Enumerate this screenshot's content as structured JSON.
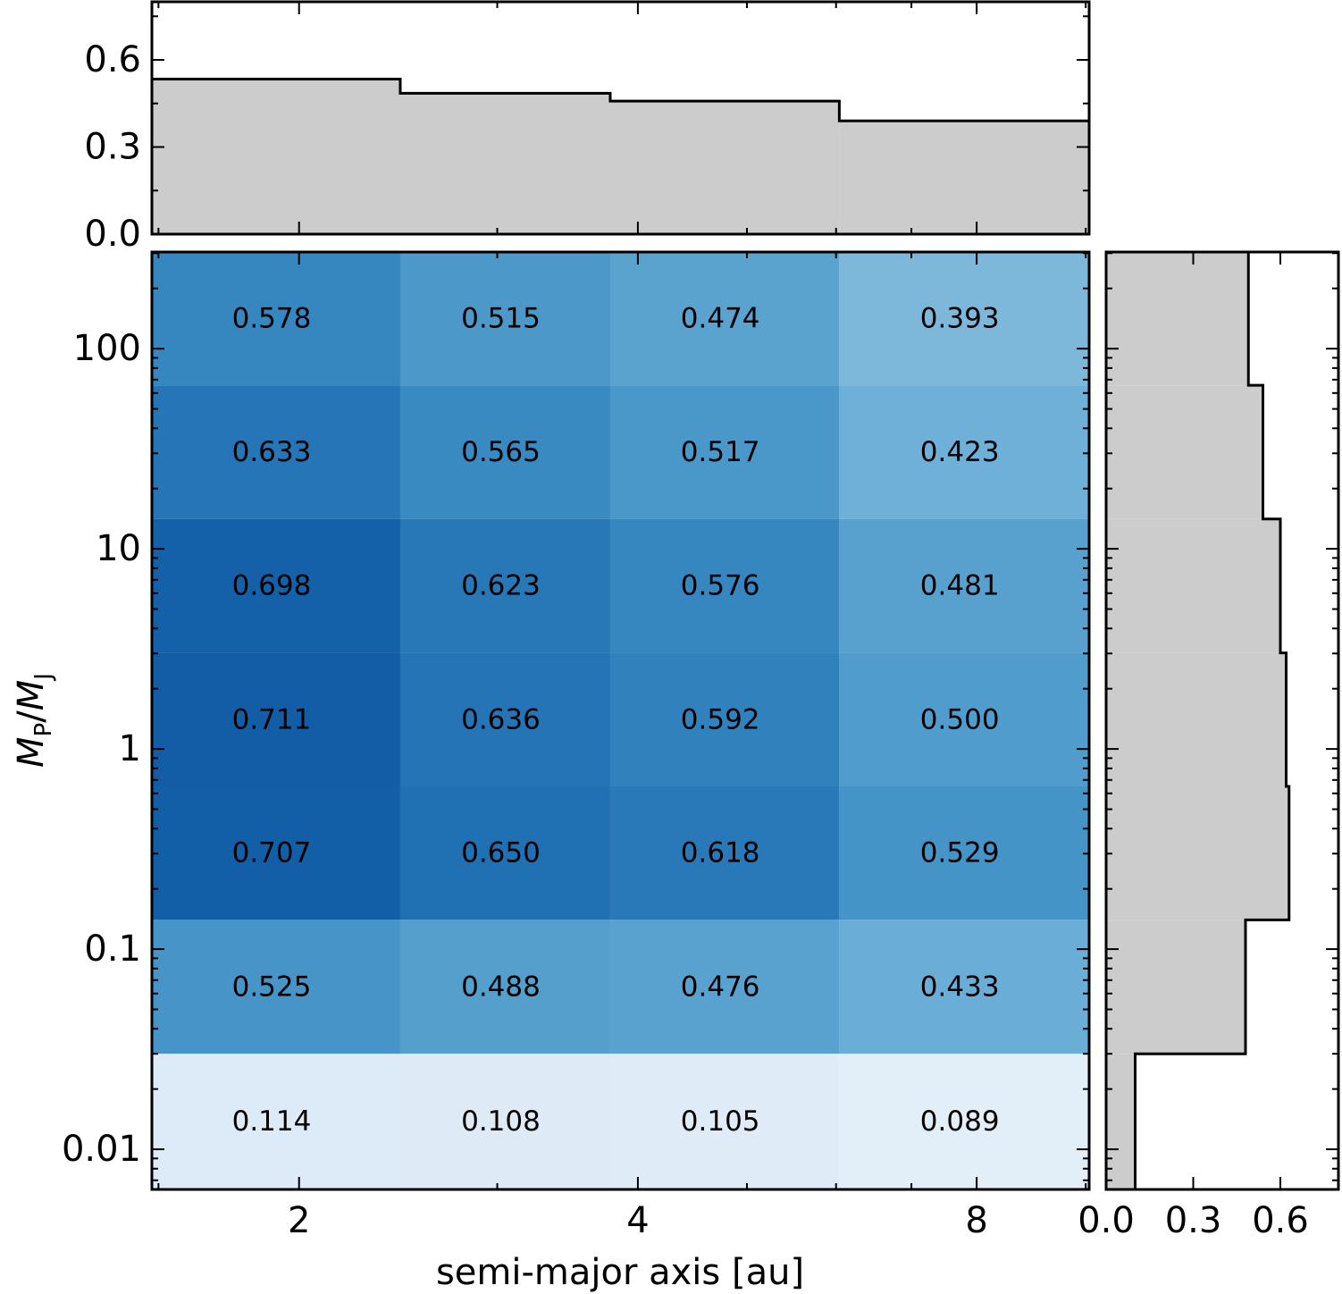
{
  "chart_data": {
    "type": "heatmap",
    "xlabel": "semi-major axis [au]",
    "ylabel": {
      "M": "M",
      "sub_p": "P",
      "slash": "/",
      "sub_j": "J"
    },
    "colormap": "Blues",
    "x_scale": "log2",
    "y_scale": "log10",
    "x_bin_edges": [
      1.48,
      2.46,
      3.78,
      6.04,
      10.07
    ],
    "y_bin_edges": [
      0.0063,
      0.03,
      0.14,
      0.65,
      3.02,
      14.1,
      65.6,
      304
    ],
    "x_ticks": [
      {
        "value": 2,
        "label": "2"
      },
      {
        "value": 4,
        "label": "4"
      },
      {
        "value": 8,
        "label": "8"
      }
    ],
    "y_ticks": [
      {
        "value": 0.01,
        "label": "0.01"
      },
      {
        "value": 0.1,
        "label": "0.1"
      },
      {
        "value": 1,
        "label": "1"
      },
      {
        "value": 10,
        "label": "10"
      },
      {
        "value": 100,
        "label": "100"
      }
    ],
    "cells": [
      [
        "0.578",
        "0.515",
        "0.474",
        "0.393"
      ],
      [
        "0.633",
        "0.565",
        "0.517",
        "0.423"
      ],
      [
        "0.698",
        "0.623",
        "0.576",
        "0.481"
      ],
      [
        "0.711",
        "0.636",
        "0.592",
        "0.500"
      ],
      [
        "0.707",
        "0.650",
        "0.618",
        "0.529"
      ],
      [
        "0.525",
        "0.488",
        "0.476",
        "0.433"
      ],
      [
        "0.114",
        "0.108",
        "0.105",
        "0.089"
      ]
    ],
    "top_histogram": {
      "values": [
        0.534,
        0.485,
        0.458,
        0.39
      ],
      "ylim": [
        0,
        0.8
      ],
      "ticks": [
        {
          "value": 0.0,
          "label": "0.0"
        },
        {
          "value": 0.3,
          "label": "0.3"
        },
        {
          "value": 0.6,
          "label": "0.6"
        }
      ],
      "fill": "#cccccc"
    },
    "right_histogram": {
      "values": [
        0.49,
        0.54,
        0.6,
        0.62,
        0.63,
        0.48,
        0.1
      ],
      "xlim": [
        0,
        0.8
      ],
      "ticks": [
        {
          "value": 0.0,
          "label": "0.0"
        },
        {
          "value": 0.3,
          "label": "0.3"
        },
        {
          "value": 0.6,
          "label": "0.6"
        }
      ],
      "fill": "#cccccc"
    }
  }
}
